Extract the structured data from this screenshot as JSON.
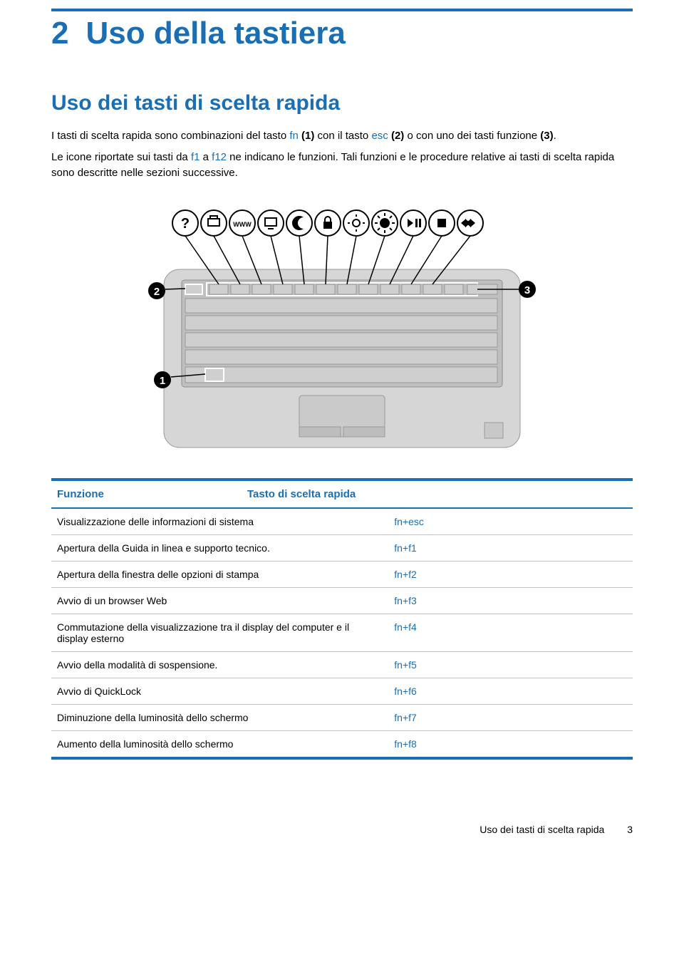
{
  "colors": {
    "accent": "#1a6fb4",
    "text": "#000000",
    "rule": "#1a6fb4",
    "row_border": "#c2c2c2",
    "bg": "#ffffff"
  },
  "typography": {
    "chapter_fontsize": 44,
    "section_fontsize": 30,
    "body_fontsize": 15,
    "table_body_fontsize": 14
  },
  "chapter": {
    "number": "2",
    "title": "Uso della tastiera"
  },
  "section": {
    "title": "Uso dei tasti di scelta rapida"
  },
  "intro": {
    "p1_pre": "I tasti di scelta rapida sono combinazioni del tasto ",
    "p1_fn": "fn",
    "p1_mid1": " ",
    "p1_b1": "(1)",
    "p1_mid2": " con il tasto ",
    "p1_esc": "esc",
    "p1_mid3": " ",
    "p1_b2": "(2)",
    "p1_mid4": " o con uno dei tasti funzione ",
    "p1_b3": "(3)",
    "p1_end": ".",
    "p2_pre": "Le icone riportate sui tasti da ",
    "p2_f1": "f1",
    "p2_mid1": " a ",
    "p2_f12": "f12",
    "p2_end": " ne indicano le funzioni. Tali funzioni e le procedure relative ai tasti di scelta rapida sono descritte nelle sezioni successive."
  },
  "figure": {
    "callouts": [
      "1",
      "2",
      "3"
    ],
    "fn_icons_count": 11
  },
  "table": {
    "columns": [
      "Funzione",
      "Tasto di scelta rapida"
    ],
    "rows": [
      [
        "Visualizzazione delle informazioni di sistema",
        "fn+esc"
      ],
      [
        "Apertura della Guida in linea e supporto tecnico.",
        "fn+f1"
      ],
      [
        "Apertura della finestra delle opzioni di stampa",
        "fn+f2"
      ],
      [
        "Avvio di un browser Web",
        "fn+f3"
      ],
      [
        "Commutazione della visualizzazione tra il display del computer e il display esterno",
        "fn+f4"
      ],
      [
        "Avvio della modalità di sospensione.",
        "fn+f5"
      ],
      [
        "Avvio di QuickLock",
        "fn+f6"
      ],
      [
        "Diminuzione della luminosità dello schermo",
        "fn+f7"
      ],
      [
        "Aumento della luminosità dello schermo",
        "fn+f8"
      ]
    ]
  },
  "footer": {
    "text": "Uso dei tasti di scelta rapida",
    "page": "3"
  }
}
